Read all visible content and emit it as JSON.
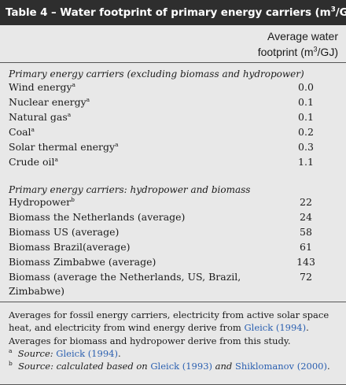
{
  "table": {
    "title": "Table 4 – Water footprint of primary energy carriers (m",
    "title_sup": "3",
    "title_end": "/GJ)",
    "column_header_line1": "Average water",
    "column_header_line2a": "footprint (m",
    "column_header_sup": "3",
    "column_header_line2b": "/GJ)"
  },
  "section1": {
    "heading": "Primary energy carriers (excluding biomass and hydropower)",
    "rows": [
      {
        "name": "Wind energy",
        "sup": "a",
        "value": "0.0"
      },
      {
        "name": "Nuclear energy",
        "sup": "a",
        "value": "0.1"
      },
      {
        "name": "Natural gas",
        "sup": "a",
        "value": "0.1"
      },
      {
        "name": "Coal",
        "sup": "a",
        "value": "0.2"
      },
      {
        "name": "Solar thermal energy",
        "sup": "a",
        "value": "0.3"
      },
      {
        "name": "Crude oil",
        "sup": "a",
        "value": "1.1"
      }
    ]
  },
  "section2": {
    "heading": "Primary energy carriers: hydropower and biomass",
    "rows": [
      {
        "name": "Hydropower",
        "sup": "b",
        "value": "22"
      },
      {
        "name": "Biomass the Netherlands (average)",
        "sup": "",
        "value": "24"
      },
      {
        "name": "Biomass US (average)",
        "sup": "",
        "value": "58"
      },
      {
        "name": "Biomass Brazil(average)",
        "sup": "",
        "value": "61"
      },
      {
        "name": "Biomass Zimbabwe (average)",
        "sup": "",
        "value": "143"
      },
      {
        "name": "Biomass (average the Netherlands, US, Brazil, Zimbabwe)",
        "sup": "",
        "value": "72"
      }
    ]
  },
  "notes": {
    "line1": "Averages for fossil energy carriers, electricity from active solar space heat, and electricity from wind energy derive from ",
    "line1_ref": "Gleick (1994)",
    "line1_end": ".",
    "line2": "Averages for biomass and hydropower derive from this study.",
    "fn_a_mark": "a",
    "fn_a_label": "Source: ",
    "fn_a_ref": "Gleick (1994)",
    "fn_a_end": ".",
    "fn_b_mark": "b",
    "fn_b_label": "Source: calculated based on ",
    "fn_b_ref1": "Gleick (1993)",
    "fn_b_and": " and ",
    "fn_b_ref2": "Shiklomanov (2000)",
    "fn_b_end": "."
  }
}
